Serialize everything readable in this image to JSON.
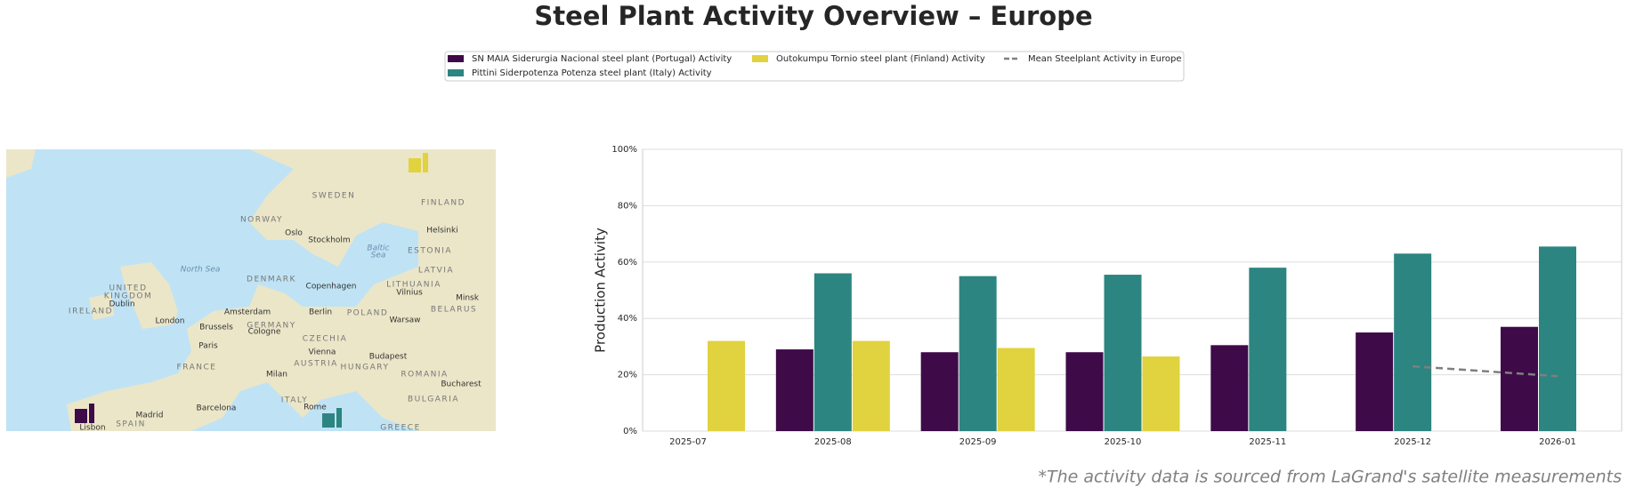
{
  "title": "Steel Plant Activity Overview – Europe",
  "footnote": "*The activity data is sourced from LaGrand's satellite measurements",
  "map": {
    "labels": [
      {
        "text": "SWEDEN",
        "kind": "country"
      },
      {
        "text": "FINLAND",
        "kind": "country"
      },
      {
        "text": "NORWAY",
        "kind": "country"
      },
      {
        "text": "Oslo",
        "kind": "city"
      },
      {
        "text": "Stockholm",
        "kind": "city"
      },
      {
        "text": "Helsinki",
        "kind": "city"
      },
      {
        "text": "Baltic",
        "kind": "sea"
      },
      {
        "text": "Sea",
        "kind": "sea"
      },
      {
        "text": "ESTONIA",
        "kind": "country"
      },
      {
        "text": "North Sea",
        "kind": "sea"
      },
      {
        "text": "DENMARK",
        "kind": "country"
      },
      {
        "text": "Copenhagen",
        "kind": "city"
      },
      {
        "text": "LATVIA",
        "kind": "country"
      },
      {
        "text": "LITHUANIA",
        "kind": "country"
      },
      {
        "text": "UNITED",
        "kind": "country"
      },
      {
        "text": "KINGDOM",
        "kind": "country"
      },
      {
        "text": "Dublin",
        "kind": "city"
      },
      {
        "text": "IRELAND",
        "kind": "country"
      },
      {
        "text": "Vilnius",
        "kind": "city"
      },
      {
        "text": "Minsk",
        "kind": "city"
      },
      {
        "text": "Amsterdam",
        "kind": "city"
      },
      {
        "text": "Berlin",
        "kind": "city"
      },
      {
        "text": "POLAND",
        "kind": "country"
      },
      {
        "text": "BELARUS",
        "kind": "country"
      },
      {
        "text": "London",
        "kind": "city"
      },
      {
        "text": "Brussels",
        "kind": "city"
      },
      {
        "text": "GERMANY",
        "kind": "country"
      },
      {
        "text": "Cologne",
        "kind": "city"
      },
      {
        "text": "Warsaw",
        "kind": "city"
      },
      {
        "text": "CZECHIA",
        "kind": "country"
      },
      {
        "text": "Paris",
        "kind": "city"
      },
      {
        "text": "Vienna",
        "kind": "city"
      },
      {
        "text": "Budapest",
        "kind": "city"
      },
      {
        "text": "FRANCE",
        "kind": "country"
      },
      {
        "text": "AUSTRIA",
        "kind": "country"
      },
      {
        "text": "HUNGARY",
        "kind": "country"
      },
      {
        "text": "ROMANIA",
        "kind": "country"
      },
      {
        "text": "Milan",
        "kind": "city"
      },
      {
        "text": "Bucharest",
        "kind": "city"
      },
      {
        "text": "ITALY",
        "kind": "country"
      },
      {
        "text": "BULGARIA",
        "kind": "country"
      },
      {
        "text": "Barcelona",
        "kind": "city"
      },
      {
        "text": "Rome",
        "kind": "city"
      },
      {
        "text": "Madrid",
        "kind": "city"
      },
      {
        "text": "Lisbon",
        "kind": "city"
      },
      {
        "text": "SPAIN",
        "kind": "country"
      },
      {
        "text": "GREECE",
        "kind": "country"
      }
    ]
  },
  "chart_data": {
    "type": "bar",
    "y_label": "Production Activity",
    "categories": [
      "2025-07",
      "2025-08",
      "2025-09",
      "2025-10",
      "2025-11",
      "2025-12",
      "2026-01"
    ],
    "series": [
      {
        "name": "SN MAIA Siderurgia Nacional steel plant (Portugal) Activity",
        "color": "#3e0a48",
        "values": [
          null,
          29,
          28,
          28,
          30.5,
          35,
          37
        ]
      },
      {
        "name": "Pittini Siderpotenza Potenza steel plant (Italy) Activity",
        "color": "#2c8580",
        "values": [
          null,
          56,
          55,
          55.5,
          58,
          63,
          65.5
        ]
      },
      {
        "name": "Outokumpu Tornio steel plant (Finland) Activity",
        "color": "#e1d23f",
        "values": [
          32,
          32,
          29.5,
          26.5,
          null,
          null,
          null
        ]
      },
      {
        "name": "Mean Steelplant Activity in Europe",
        "color": "#7f7f7f",
        "type": "line",
        "dashed": true,
        "values": [
          null,
          null,
          null,
          null,
          null,
          23,
          19.5
        ]
      }
    ],
    "ylim": [
      0,
      100
    ],
    "yticks": [
      {
        "value": 0,
        "label": "0%"
      },
      {
        "value": 20,
        "label": "20%"
      },
      {
        "value": 40,
        "label": "40%"
      },
      {
        "value": 60,
        "label": "60%"
      },
      {
        "value": 80,
        "label": "80%"
      },
      {
        "value": 100,
        "label": "100%"
      }
    ],
    "grid": true
  }
}
